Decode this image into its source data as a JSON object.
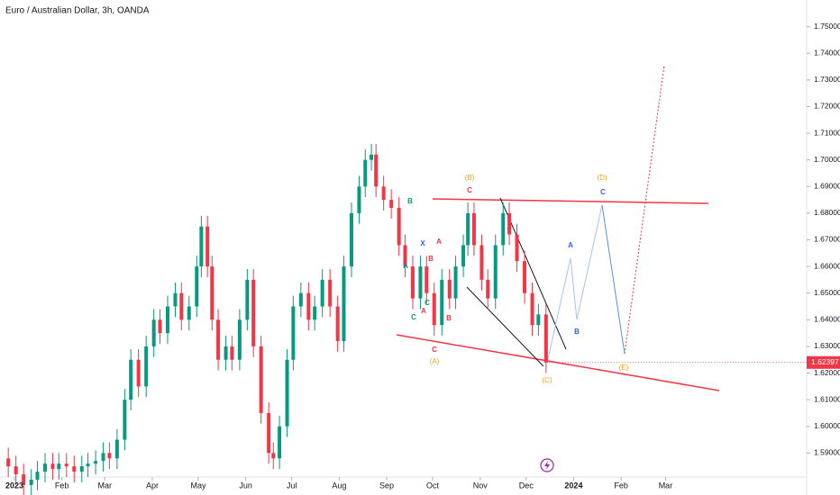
{
  "chart_data": {
    "type": "candlestick",
    "title": "Euro / Australian Dollar, 3h, OANDA",
    "x": [
      -4,
      1,
      6,
      11,
      15,
      20,
      25,
      29,
      34,
      39,
      44,
      48,
      53,
      58,
      62,
      67,
      72,
      76,
      81,
      86,
      91,
      95,
      100,
      105,
      109,
      114,
      119,
      122,
      126,
      129,
      133,
      138,
      142,
      147,
      152,
      156,
      161,
      166,
      169,
      173,
      178,
      182,
      187,
      192,
      196,
      201,
      206,
      211,
      215,
      220,
      225,
      229,
      233,
      236,
      241,
      246,
      251,
      255,
      260,
      265,
      269,
      274,
      279,
      284,
      288,
      293,
      296,
      300,
      305,
      309,
      314,
      319,
      323,
      328,
      333,
      338,
      342,
      347
    ],
    "ohlc": [
      [
        1.588,
        1.592,
        1.581,
        1.585
      ],
      [
        1.585,
        1.589,
        1.578,
        1.582
      ],
      [
        1.582,
        1.586,
        1.574,
        1.578
      ],
      [
        1.578,
        1.584,
        1.574,
        1.58
      ],
      [
        1.58,
        1.587,
        1.576,
        1.583
      ],
      [
        1.583,
        1.59,
        1.579,
        1.586
      ],
      [
        1.586,
        1.59,
        1.58,
        1.584
      ],
      [
        1.584,
        1.59,
        1.58,
        1.586
      ],
      [
        1.586,
        1.59,
        1.581,
        1.585
      ],
      [
        1.585,
        1.589,
        1.579,
        1.583
      ],
      [
        1.583,
        1.589,
        1.579,
        1.585
      ],
      [
        1.585,
        1.59,
        1.581,
        1.586
      ],
      [
        1.586,
        1.591,
        1.582,
        1.587
      ],
      [
        1.587,
        1.594,
        1.583,
        1.59
      ],
      [
        1.59,
        1.594,
        1.584,
        1.588
      ],
      [
        1.588,
        1.599,
        1.584,
        1.595
      ],
      [
        1.595,
        1.614,
        1.591,
        1.61
      ],
      [
        1.61,
        1.629,
        1.606,
        1.625
      ],
      [
        1.625,
        1.629,
        1.611,
        1.615
      ],
      [
        1.615,
        1.634,
        1.611,
        1.63
      ],
      [
        1.63,
        1.644,
        1.626,
        1.64
      ],
      [
        1.64,
        1.644,
        1.631,
        1.635
      ],
      [
        1.635,
        1.649,
        1.631,
        1.645
      ],
      [
        1.645,
        1.654,
        1.641,
        1.65
      ],
      [
        1.65,
        1.654,
        1.636,
        1.64
      ],
      [
        1.64,
        1.649,
        1.636,
        1.645
      ],
      [
        1.645,
        1.664,
        1.641,
        1.66
      ],
      [
        1.66,
        1.679,
        1.656,
        1.675
      ],
      [
        1.675,
        1.679,
        1.656,
        1.66
      ],
      [
        1.66,
        1.664,
        1.636,
        1.64
      ],
      [
        1.64,
        1.644,
        1.621,
        1.625
      ],
      [
        1.625,
        1.634,
        1.621,
        1.63
      ],
      [
        1.63,
        1.634,
        1.621,
        1.625
      ],
      [
        1.625,
        1.644,
        1.621,
        1.64
      ],
      [
        1.64,
        1.659,
        1.636,
        1.655
      ],
      [
        1.655,
        1.659,
        1.626,
        1.63
      ],
      [
        1.63,
        1.634,
        1.601,
        1.605
      ],
      [
        1.605,
        1.609,
        1.586,
        1.59
      ],
      [
        1.59,
        1.594,
        1.584,
        1.588
      ],
      [
        1.588,
        1.604,
        1.584,
        1.6
      ],
      [
        1.6,
        1.629,
        1.596,
        1.625
      ],
      [
        1.625,
        1.649,
        1.621,
        1.645
      ],
      [
        1.645,
        1.654,
        1.641,
        1.65
      ],
      [
        1.65,
        1.654,
        1.636,
        1.64
      ],
      [
        1.64,
        1.649,
        1.636,
        1.645
      ],
      [
        1.645,
        1.659,
        1.641,
        1.655
      ],
      [
        1.655,
        1.659,
        1.641,
        1.645
      ],
      [
        1.645,
        1.649,
        1.628,
        1.632
      ],
      [
        1.632,
        1.664,
        1.628,
        1.66
      ],
      [
        1.66,
        1.684,
        1.656,
        1.68
      ],
      [
        1.68,
        1.694,
        1.676,
        1.69
      ],
      [
        1.69,
        1.704,
        1.686,
        1.7
      ],
      [
        1.7,
        1.706,
        1.696,
        1.702
      ],
      [
        1.702,
        1.706,
        1.686,
        1.69
      ],
      [
        1.69,
        1.694,
        1.681,
        1.685
      ],
      [
        1.685,
        1.689,
        1.678,
        1.682
      ],
      [
        1.682,
        1.686,
        1.664,
        1.668
      ],
      [
        1.668,
        1.672,
        1.656,
        1.66
      ],
      [
        1.66,
        1.664,
        1.644,
        1.648
      ],
      [
        1.648,
        1.664,
        1.644,
        1.66
      ],
      [
        1.66,
        1.664,
        1.646,
        1.65
      ],
      [
        1.65,
        1.654,
        1.634,
        1.638
      ],
      [
        1.638,
        1.659,
        1.634,
        1.655
      ],
      [
        1.655,
        1.659,
        1.644,
        1.648
      ],
      [
        1.648,
        1.664,
        1.644,
        1.66
      ],
      [
        1.66,
        1.672,
        1.656,
        1.668
      ],
      [
        1.668,
        1.684,
        1.664,
        1.68
      ],
      [
        1.68,
        1.684,
        1.664,
        1.668
      ],
      [
        1.668,
        1.672,
        1.651,
        1.655
      ],
      [
        1.655,
        1.659,
        1.644,
        1.648
      ],
      [
        1.648,
        1.672,
        1.644,
        1.668
      ],
      [
        1.668,
        1.684,
        1.664,
        1.68
      ],
      [
        1.68,
        1.684,
        1.668,
        1.672
      ],
      [
        1.672,
        1.676,
        1.658,
        1.662
      ],
      [
        1.662,
        1.666,
        1.646,
        1.65
      ],
      [
        1.65,
        1.654,
        1.634,
        1.638
      ],
      [
        1.638,
        1.646,
        1.634,
        1.642
      ],
      [
        1.642,
        1.646,
        1.62,
        1.62397
      ]
    ],
    "up_color": "#089981",
    "down_color": "#f23645",
    "last_price": {
      "value": 1.62397,
      "label": "1.62397"
    },
    "xlim": [
      -9.4,
      517.1
    ],
    "ylim": [
      1.581,
      1.76
    ],
    "xticks": [
      {
        "value": 0,
        "label": "2023"
      },
      {
        "value": 31,
        "label": "Feb"
      },
      {
        "value": 59,
        "label": "Mar"
      },
      {
        "value": 90,
        "label": "Apr"
      },
      {
        "value": 120,
        "label": "May"
      },
      {
        "value": 151,
        "label": "Jun"
      },
      {
        "value": 181,
        "label": "Jul"
      },
      {
        "value": 212,
        "label": "Aug"
      },
      {
        "value": 243,
        "label": "Sep"
      },
      {
        "value": 273,
        "label": "Oct"
      },
      {
        "value": 304,
        "label": "Nov"
      },
      {
        "value": 334,
        "label": "Dec"
      },
      {
        "value": 365,
        "label": "2024"
      },
      {
        "value": 396,
        "label": "Feb"
      },
      {
        "value": 425,
        "label": "Mar"
      }
    ],
    "yticks": [
      {
        "value": 1.59,
        "label": "1.59000"
      },
      {
        "value": 1.6,
        "label": "1.60000"
      },
      {
        "value": 1.61,
        "label": "1.61000"
      },
      {
        "value": 1.62,
        "label": "1.62000"
      },
      {
        "value": 1.63,
        "label": "1.63000"
      },
      {
        "value": 1.64,
        "label": "1.64000"
      },
      {
        "value": 1.65,
        "label": "1.65000"
      },
      {
        "value": 1.66,
        "label": "1.66000"
      },
      {
        "value": 1.67,
        "label": "1.67000"
      },
      {
        "value": 1.68,
        "label": "1.68000"
      },
      {
        "value": 1.69,
        "label": "1.69000"
      },
      {
        "value": 1.7,
        "label": "1.70000"
      },
      {
        "value": 1.71,
        "label": "1.71000"
      },
      {
        "value": 1.72,
        "label": "1.72000"
      },
      {
        "value": 1.73,
        "label": "1.73000"
      },
      {
        "value": 1.74,
        "label": "1.74000"
      },
      {
        "value": 1.75,
        "label": "1.75000"
      }
    ],
    "annotations": [
      {
        "text": "(A)",
        "color": "#f7a21b"
      },
      {
        "text": "C",
        "color": "#f23645"
      },
      {
        "text": "(B)",
        "color": "#f7a21b"
      },
      {
        "text": "C",
        "color": "#f23645"
      },
      {
        "text": "(C)",
        "color": "#f7a21b"
      },
      {
        "text": "(D)",
        "color": "#f7a21b"
      },
      {
        "text": "C",
        "color": "#2962ff"
      },
      {
        "text": "(E)",
        "color": "#f7a21b"
      },
      {
        "text": "A",
        "color": "#2962ff"
      },
      {
        "text": "B",
        "color": "#2962ff"
      },
      {
        "text": "X",
        "color": "#2962ff"
      },
      {
        "text": "B",
        "color": "#089981"
      },
      {
        "text": "A",
        "color": "#089981"
      },
      {
        "text": "C",
        "color": "#089981"
      },
      {
        "text": "C",
        "color": "#089981"
      },
      {
        "text": "A",
        "color": "#f23645"
      },
      {
        "text": "B",
        "color": "#f23645"
      },
      {
        "text": "A",
        "color": "#f23645"
      },
      {
        "text": "B",
        "color": "#f23645"
      }
    ]
  }
}
